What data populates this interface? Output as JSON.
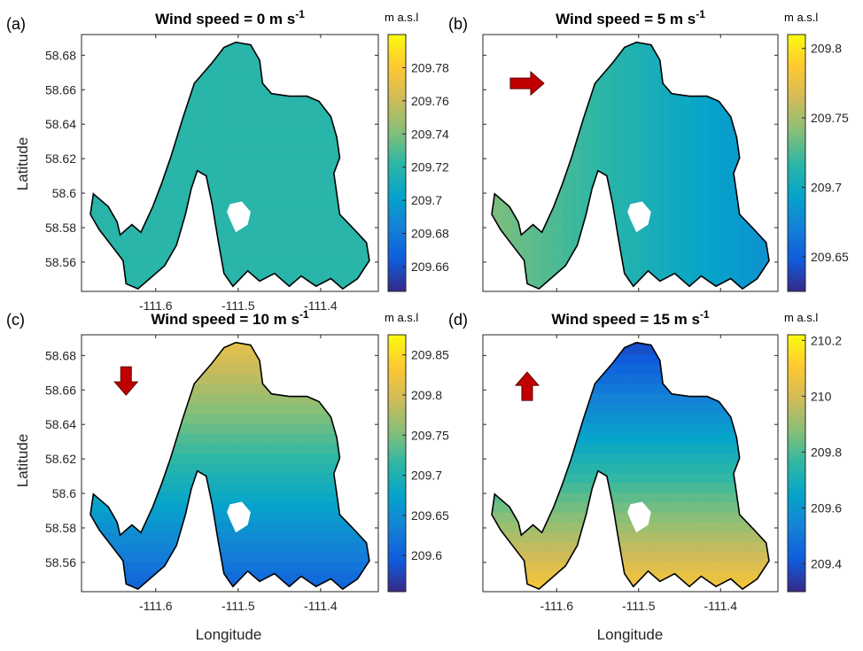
{
  "figure": {
    "xlabel": "Longitude",
    "ylabel": "Latitude",
    "unit": "m a.s.l",
    "colors": {
      "parula": [
        "#352a87",
        "#0f5cdd",
        "#1481d6",
        "#06a4ca",
        "#2eb7a4",
        "#87bf77",
        "#d1bb59",
        "#fec832",
        "#f9fb0e"
      ],
      "land": "#000000",
      "arrow": "#c00000"
    }
  },
  "chart_data": [
    {
      "type": "heatmap",
      "panel_label": "(a)",
      "title": "Wind speed = 0 m s",
      "title_sup": "-1",
      "wind_speed": 0,
      "wind_arrow": "none",
      "xlim": [
        -111.69,
        -111.33
      ],
      "ylim": [
        58.543,
        58.692
      ],
      "xticks": [
        -111.6,
        -111.5,
        -111.4
      ],
      "yticks": [
        58.56,
        58.58,
        58.6,
        58.62,
        58.64,
        58.66,
        58.68
      ],
      "xtick_labels": [
        "-111.6",
        "-111.5",
        "-111.4"
      ],
      "ytick_labels": [
        "58.56",
        "58.58",
        "58.6",
        "58.62",
        "58.64",
        "58.66",
        "58.68"
      ],
      "colorbar": {
        "ticks": [
          209.66,
          209.68,
          209.7,
          209.72,
          209.74,
          209.76,
          209.78
        ],
        "tick_labels": [
          "209.66",
          "209.68",
          "209.7",
          "209.72",
          "209.74",
          "209.76",
          "209.78"
        ],
        "range": [
          209.645,
          209.8
        ]
      },
      "field": {
        "base": 209.72,
        "grad_north": 0.0,
        "grad_east": 0.0
      }
    },
    {
      "type": "heatmap",
      "panel_label": "(b)",
      "title": "Wind speed = 5 m s",
      "title_sup": "-1",
      "wind_speed": 5,
      "wind_arrow": "east",
      "xlim": [
        -111.69,
        -111.33
      ],
      "ylim": [
        58.543,
        58.692
      ],
      "xticks": [
        -111.6,
        -111.5,
        -111.4
      ],
      "yticks": [
        58.56,
        58.58,
        58.6,
        58.62,
        58.64,
        58.66,
        58.68
      ],
      "xtick_labels": [],
      "ytick_labels": [],
      "colorbar": {
        "ticks": [
          209.65,
          209.7,
          209.75,
          209.8
        ],
        "tick_labels": [
          "209.65",
          "209.7",
          "209.75",
          "209.8"
        ],
        "range": [
          209.625,
          209.81
        ]
      },
      "field": {
        "base": 209.71,
        "grad_north": 0.0,
        "grad_east": -0.06
      }
    },
    {
      "type": "heatmap",
      "panel_label": "(c)",
      "title": "Wind speed = 10 m s",
      "title_sup": "-1",
      "wind_speed": 10,
      "wind_arrow": "south",
      "xlim": [
        -111.69,
        -111.33
      ],
      "ylim": [
        58.543,
        58.692
      ],
      "xticks": [
        -111.6,
        -111.5,
        -111.4
      ],
      "yticks": [
        58.56,
        58.58,
        58.6,
        58.62,
        58.64,
        58.66,
        58.68
      ],
      "xtick_labels": [
        "-111.6",
        "-111.5",
        "-111.4"
      ],
      "ytick_labels": [
        "58.56",
        "58.58",
        "58.6",
        "58.62",
        "58.64",
        "58.66",
        "58.68"
      ],
      "colorbar": {
        "ticks": [
          209.6,
          209.65,
          209.7,
          209.75,
          209.8,
          209.85
        ],
        "tick_labels": [
          "209.6",
          "209.65",
          "209.7",
          "209.75",
          "209.8",
          "209.85"
        ],
        "range": [
          209.555,
          209.875
        ]
      },
      "field": {
        "base": 209.71,
        "grad_north": 0.22,
        "grad_east": 0.0
      }
    },
    {
      "type": "heatmap",
      "panel_label": "(d)",
      "title": "Wind speed = 15 m s",
      "title_sup": "-1",
      "wind_speed": 15,
      "wind_arrow": "north",
      "xlim": [
        -111.69,
        -111.33
      ],
      "ylim": [
        58.543,
        58.692
      ],
      "xticks": [
        -111.6,
        -111.5,
        -111.4
      ],
      "yticks": [
        58.56,
        58.58,
        58.6,
        58.62,
        58.64,
        58.66,
        58.68
      ],
      "xtick_labels": [
        "-111.6",
        "-111.5",
        "-111.4"
      ],
      "ytick_labels": [],
      "colorbar": {
        "ticks": [
          209.4,
          209.6,
          209.8,
          210,
          210.2
        ],
        "tick_labels": [
          "209.4",
          "209.6",
          "209.8",
          "210",
          "210.2"
        ],
        "range": [
          209.3,
          210.22
        ]
      },
      "field": {
        "base": 209.72,
        "grad_north": -0.75,
        "grad_east": 0.0
      }
    }
  ]
}
